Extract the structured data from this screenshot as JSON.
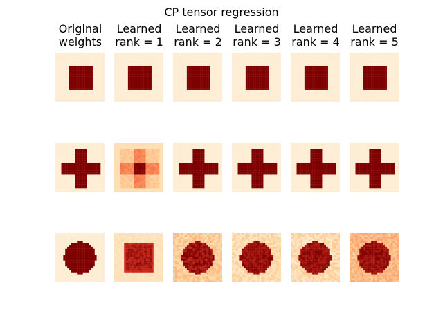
{
  "chart_data": {
    "type": "heatmap",
    "title": "CP tensor regression",
    "colormap": "OrRd",
    "columns": [
      {
        "line1": "Original",
        "line2": "weights"
      },
      {
        "line1": "Learned",
        "line2": "rank = 1"
      },
      {
        "line1": "Learned",
        "line2": "rank = 2"
      },
      {
        "line1": "Learned",
        "line2": "rank = 3"
      },
      {
        "line1": "Learned",
        "line2": "rank = 4"
      },
      {
        "line1": "Learned",
        "line2": "rank = 5"
      }
    ],
    "rows": [
      "square",
      "cross",
      "disk"
    ],
    "grid_size": 25,
    "shape_params": {
      "square": {
        "lo": 7,
        "hi": 18
      },
      "cross": {
        "arm_lo": 10,
        "arm_hi": 15,
        "span_lo": 3,
        "span_hi": 22
      },
      "disk": {
        "center": 12,
        "radius": 8
      }
    },
    "background_level": [
      [
        0.06,
        0.06,
        0.06,
        0.06,
        0.06,
        0.06
      ],
      [
        0.06,
        0.14,
        0.06,
        0.06,
        0.06,
        0.06
      ],
      [
        0.06,
        0.1,
        0.22,
        0.16,
        0.16,
        0.3
      ]
    ],
    "grid": false,
    "axes_visible": false
  },
  "colors": {
    "low": "#fff7ec",
    "mid": "#fdd49e",
    "mid2": "#fc8d59",
    "mid3": "#d7301f",
    "high": "#7f0000"
  }
}
